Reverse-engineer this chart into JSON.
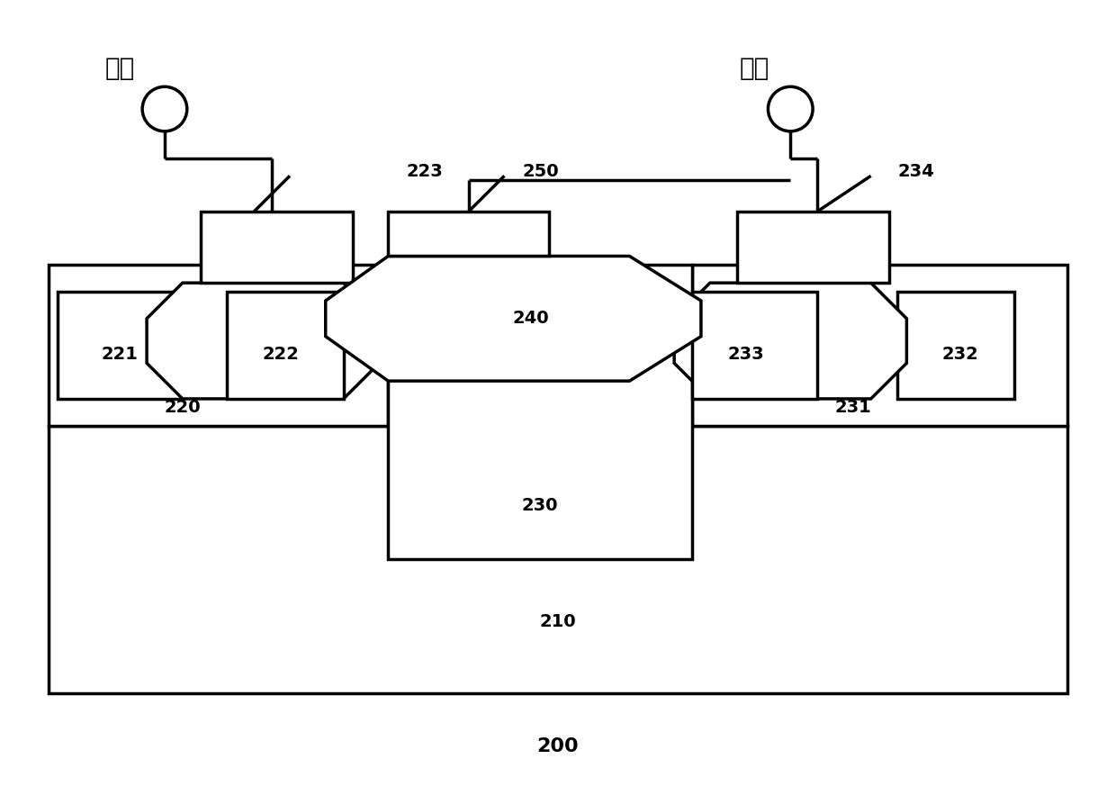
{
  "bg": "#ffffff",
  "lc": "#000000",
  "lw": 2.5,
  "fw": 12.4,
  "fh": 8.73,
  "labels": {
    "yin": "阴极",
    "yang": "阳极",
    "200": "200",
    "210": "210",
    "220": "220",
    "221": "221",
    "222": "222",
    "223": "223",
    "230": "230",
    "231": "231",
    "232": "232",
    "233": "233",
    "234": "234",
    "240": "240",
    "250": "250"
  }
}
